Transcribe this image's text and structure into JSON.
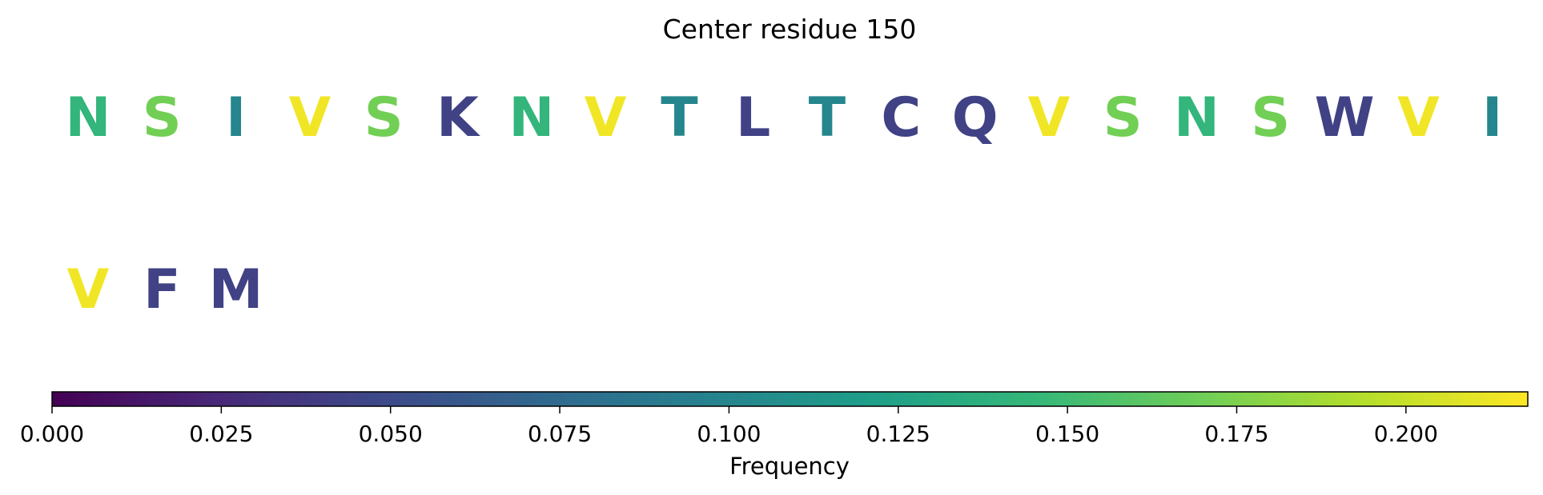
{
  "chart_data": {
    "type": "sequence-logo",
    "title": "Center residue 150",
    "residues": [
      {
        "letter": "N",
        "frequency": 0.143
      },
      {
        "letter": "S",
        "frequency": 0.171
      },
      {
        "letter": "I",
        "frequency": 0.1
      },
      {
        "letter": "V",
        "frequency": 0.214
      },
      {
        "letter": "S",
        "frequency": 0.171
      },
      {
        "letter": "K",
        "frequency": 0.043
      },
      {
        "letter": "N",
        "frequency": 0.143
      },
      {
        "letter": "V",
        "frequency": 0.214
      },
      {
        "letter": "T",
        "frequency": 0.1
      },
      {
        "letter": "L",
        "frequency": 0.043
      },
      {
        "letter": "T",
        "frequency": 0.1
      },
      {
        "letter": "C",
        "frequency": 0.043
      },
      {
        "letter": "Q",
        "frequency": 0.043
      },
      {
        "letter": "V",
        "frequency": 0.214
      },
      {
        "letter": "S",
        "frequency": 0.171
      },
      {
        "letter": "N",
        "frequency": 0.143
      },
      {
        "letter": "S",
        "frequency": 0.171
      },
      {
        "letter": "W",
        "frequency": 0.043
      },
      {
        "letter": "V",
        "frequency": 0.214
      },
      {
        "letter": "I",
        "frequency": 0.1
      },
      {
        "letter": "V",
        "frequency": 0.214
      },
      {
        "letter": "F",
        "frequency": 0.043
      },
      {
        "letter": "M",
        "frequency": 0.043
      }
    ],
    "colorbar": {
      "label": "Frequency",
      "colormap": "viridis",
      "range": [
        0,
        0.218
      ],
      "ticks": [
        0,
        0.025,
        0.05,
        0.075,
        0.1,
        0.125,
        0.15,
        0.175,
        0.2
      ],
      "tick_labels": [
        "0.000",
        "0.025",
        "0.050",
        "0.075",
        "0.100",
        "0.125",
        "0.150",
        "0.175",
        "0.200"
      ]
    }
  }
}
